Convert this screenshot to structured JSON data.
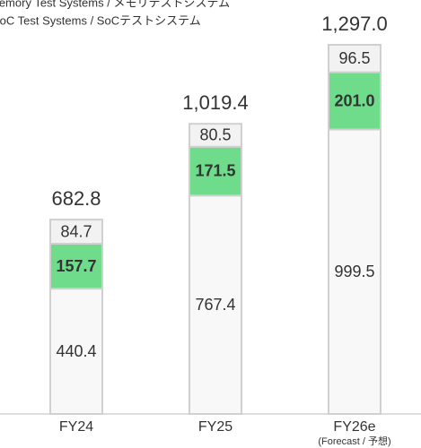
{
  "chart_data": {
    "type": "stacked_bar",
    "categories": [
      "FY24",
      "FY25",
      "FY26e"
    ],
    "annotation": "(Forecast / 予想)",
    "series": [
      {
        "name": "SoC Test Systems / SoCテストシステム",
        "color": "#f8f8f8",
        "values": [
          440.4,
          767.4,
          999.5
        ]
      },
      {
        "name": "Memory Test Systems / メモリテストシステム",
        "color": "#6fdc8c",
        "values": [
          157.7,
          171.5,
          201.0
        ],
        "value_labels": [
          "157.7",
          "171.5",
          "201.0"
        ]
      },
      {
        "color": "#f2f2f2",
        "values": [
          84.7,
          80.5,
          96.5
        ]
      }
    ],
    "totals": [
      682.8,
      1019.4,
      1297.0
    ],
    "total_labels": [
      "682.8",
      "1,019.4",
      "1,297.0"
    ]
  }
}
